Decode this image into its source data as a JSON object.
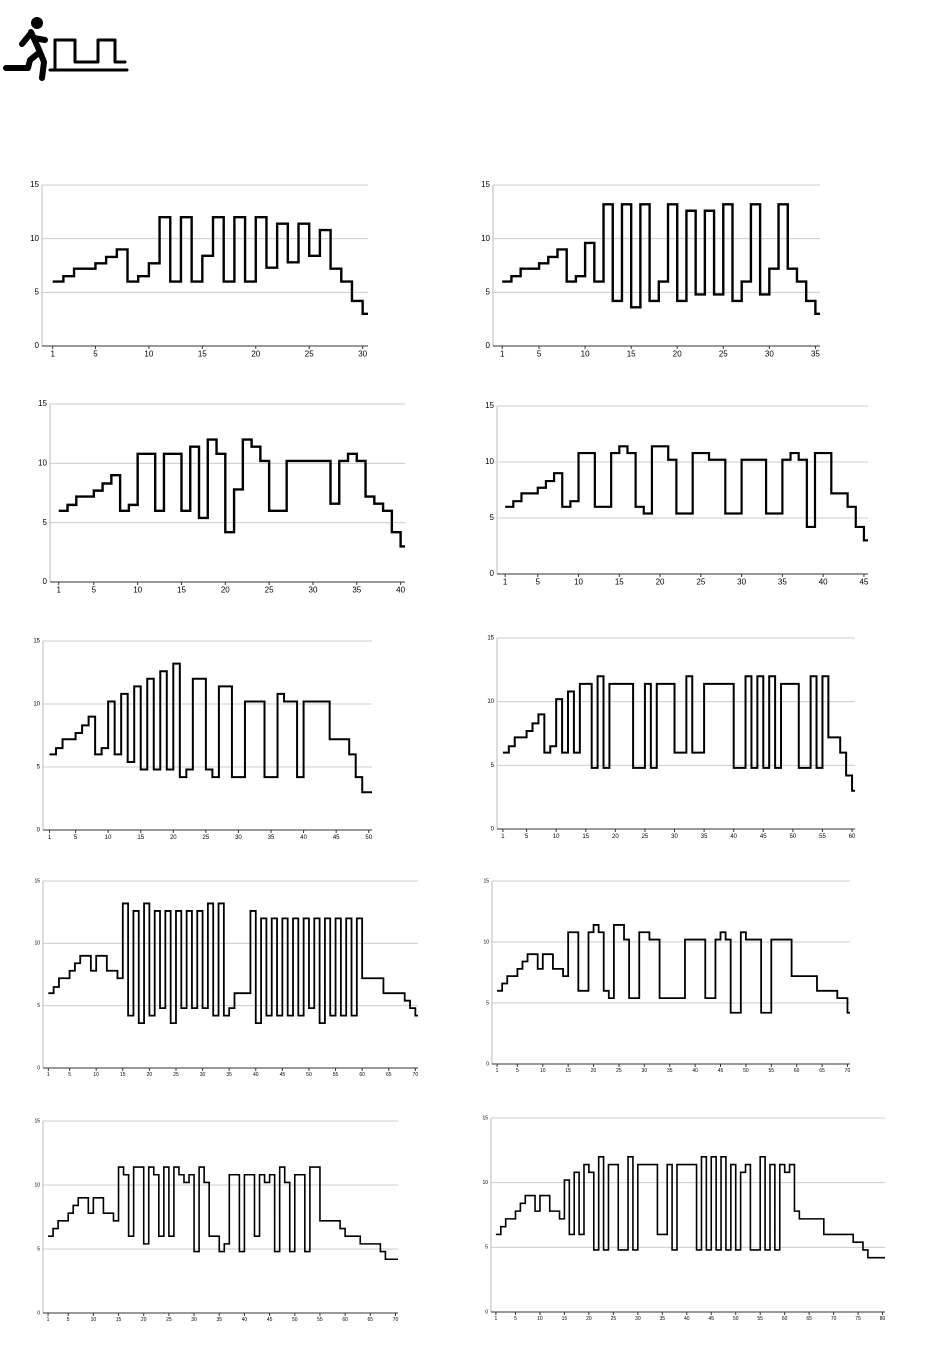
{
  "chart_data": [
    {
      "type": "step",
      "color": "#000000",
      "grid": true,
      "ylim": [
        0,
        15
      ],
      "yticks": [
        0,
        5,
        10,
        15
      ],
      "xlim": [
        0,
        30.5
      ],
      "xticks": [
        1,
        5,
        10,
        15,
        20,
        25,
        30
      ],
      "x": [
        1,
        2,
        3,
        4,
        5,
        6,
        7,
        8,
        9,
        10,
        11,
        12,
        13,
        14,
        15,
        16,
        17,
        18,
        19,
        20,
        21,
        22,
        23,
        24,
        25,
        26,
        27,
        28,
        29,
        30
      ],
      "values": [
        6,
        6.5,
        7.2,
        7.2,
        7.7,
        8.3,
        9,
        6,
        6.5,
        7.7,
        12,
        6,
        12,
        6,
        8.4,
        12,
        6,
        12,
        6,
        12,
        7.3,
        11.4,
        7.8,
        11.4,
        8.4,
        10.8,
        7.2,
        6,
        4.2,
        3
      ]
    },
    {
      "type": "step",
      "color": "#000000",
      "grid": true,
      "ylim": [
        0,
        15
      ],
      "yticks": [
        0,
        5,
        10,
        15
      ],
      "xlim": [
        0,
        35.5
      ],
      "xticks": [
        1,
        5,
        10,
        15,
        20,
        25,
        30,
        35
      ],
      "x": [
        1,
        2,
        3,
        4,
        5,
        6,
        7,
        8,
        9,
        10,
        11,
        12,
        13,
        14,
        15,
        16,
        17,
        18,
        19,
        20,
        21,
        22,
        23,
        24,
        25,
        26,
        27,
        28,
        29,
        30,
        31,
        32,
        33,
        34,
        35
      ],
      "values": [
        6,
        6.5,
        7.2,
        7.2,
        7.7,
        8.3,
        9,
        6,
        6.5,
        9.6,
        6,
        13.2,
        4.2,
        13.2,
        3.6,
        13.2,
        4.2,
        6,
        13.2,
        4.2,
        12.6,
        4.8,
        12.6,
        4.8,
        13.2,
        4.2,
        6,
        13.2,
        4.8,
        7.2,
        13.2,
        7.2,
        6,
        4.2,
        3
      ]
    },
    {
      "type": "step",
      "color": "#000000",
      "grid": true,
      "ylim": [
        0,
        15
      ],
      "yticks": [
        0,
        5,
        10,
        15
      ],
      "xlim": [
        0,
        40.5
      ],
      "xticks": [
        1,
        5,
        10,
        15,
        20,
        25,
        30,
        35,
        40
      ],
      "x": [
        1,
        2,
        3,
        4,
        5,
        6,
        7,
        8,
        9,
        10,
        11,
        12,
        13,
        14,
        15,
        16,
        17,
        18,
        19,
        20,
        21,
        22,
        23,
        24,
        25,
        26,
        27,
        28,
        29,
        30,
        31,
        32,
        33,
        34,
        35,
        36,
        37,
        38,
        39,
        40
      ],
      "values": [
        6,
        6.5,
        7.2,
        7.2,
        7.7,
        8.3,
        9,
        6,
        6.5,
        10.8,
        10.8,
        6,
        10.8,
        10.8,
        6,
        11.4,
        5.4,
        12,
        10.8,
        4.2,
        7.8,
        12,
        11.4,
        10.2,
        6,
        6,
        10.2,
        10.2,
        10.2,
        10.2,
        10.2,
        6.6,
        10.2,
        10.8,
        10.2,
        7.2,
        6.6,
        6,
        4.2,
        3
      ]
    },
    {
      "type": "step",
      "color": "#000000",
      "grid": true,
      "ylim": [
        0,
        15
      ],
      "yticks": [
        0,
        5,
        10,
        15
      ],
      "xlim": [
        0,
        45.5
      ],
      "xticks": [
        1,
        5,
        10,
        15,
        20,
        25,
        30,
        35,
        40,
        45
      ],
      "x": [
        1,
        2,
        3,
        4,
        5,
        6,
        7,
        8,
        9,
        10,
        11,
        12,
        13,
        14,
        15,
        16,
        17,
        18,
        19,
        20,
        21,
        22,
        23,
        24,
        25,
        26,
        27,
        28,
        29,
        30,
        31,
        32,
        33,
        34,
        35,
        36,
        37,
        38,
        39,
        40,
        41,
        42,
        43,
        44,
        45
      ],
      "values": [
        6,
        6.5,
        7.2,
        7.2,
        7.7,
        8.3,
        9,
        6,
        6.5,
        10.8,
        10.8,
        6,
        6,
        10.8,
        11.4,
        10.8,
        6,
        5.4,
        11.4,
        11.4,
        10.2,
        5.4,
        5.4,
        10.8,
        10.8,
        10.2,
        10.2,
        5.4,
        5.4,
        10.2,
        10.2,
        10.2,
        5.4,
        5.4,
        10.2,
        10.8,
        10.2,
        4.2,
        10.8,
        10.8,
        7.2,
        7.2,
        6,
        4.2,
        3
      ]
    },
    {
      "type": "step",
      "color": "#000000",
      "grid": true,
      "ylim": [
        0,
        15
      ],
      "yticks": [
        0,
        5,
        10,
        15
      ],
      "xlim": [
        0,
        50.5
      ],
      "xticks": [
        1,
        5,
        10,
        15,
        20,
        25,
        30,
        35,
        40,
        45,
        50
      ],
      "x": [
        1,
        2,
        3,
        4,
        5,
        6,
        7,
        8,
        9,
        10,
        11,
        12,
        13,
        14,
        15,
        16,
        17,
        18,
        19,
        20,
        21,
        22,
        23,
        24,
        25,
        26,
        27,
        28,
        29,
        30,
        31,
        32,
        33,
        34,
        35,
        36,
        37,
        38,
        39,
        40,
        41,
        42,
        43,
        44,
        45,
        46,
        47,
        48,
        49,
        50
      ],
      "values": [
        6,
        6.5,
        7.2,
        7.2,
        7.7,
        8.3,
        9,
        6,
        6.5,
        10.2,
        6,
        10.8,
        5.4,
        11.4,
        4.8,
        12,
        4.8,
        12.6,
        4.8,
        13.2,
        4.2,
        4.8,
        12,
        12,
        4.8,
        4.2,
        11.4,
        11.4,
        4.2,
        4.2,
        10.2,
        10.2,
        10.2,
        4.2,
        4.2,
        10.8,
        10.2,
        10.2,
        4.2,
        10.2,
        10.2,
        10.2,
        10.2,
        7.2,
        7.2,
        7.2,
        6,
        4.2,
        3,
        3
      ]
    },
    {
      "type": "step",
      "color": "#000000",
      "grid": true,
      "ylim": [
        0,
        15
      ],
      "yticks": [
        0,
        5,
        10,
        15
      ],
      "xlim": [
        0,
        60.5
      ],
      "xticks": [
        1,
        5,
        10,
        15,
        20,
        25,
        30,
        35,
        40,
        45,
        50,
        55,
        60
      ],
      "x": [
        1,
        2,
        3,
        4,
        5,
        6,
        7,
        8,
        9,
        10,
        11,
        12,
        13,
        14,
        15,
        16,
        17,
        18,
        19,
        20,
        21,
        22,
        23,
        24,
        25,
        26,
        27,
        28,
        29,
        30,
        31,
        32,
        33,
        34,
        35,
        36,
        37,
        38,
        39,
        40,
        41,
        42,
        43,
        44,
        45,
        46,
        47,
        48,
        49,
        50,
        51,
        52,
        53,
        54,
        55,
        56,
        57,
        58,
        59,
        60
      ],
      "values": [
        6,
        6.5,
        7.2,
        7.2,
        7.7,
        8.3,
        9,
        6,
        6.5,
        10.2,
        6,
        10.8,
        6,
        11.4,
        11.4,
        4.8,
        12,
        4.8,
        11.4,
        11.4,
        11.4,
        11.4,
        4.8,
        4.8,
        11.4,
        4.8,
        11.4,
        11.4,
        11.4,
        6,
        6,
        12,
        6,
        6,
        11.4,
        11.4,
        11.4,
        11.4,
        11.4,
        4.8,
        4.8,
        12,
        4.8,
        12,
        4.8,
        12,
        4.8,
        11.4,
        11.4,
        11.4,
        4.8,
        4.8,
        12,
        4.8,
        12,
        7.2,
        7.2,
        6,
        4.2,
        3
      ]
    },
    {
      "type": "step",
      "color": "#000000",
      "grid": true,
      "ylim": [
        0,
        15
      ],
      "yticks": [
        0,
        5,
        10,
        15
      ],
      "xlim": [
        0,
        70.5
      ],
      "xticks": [
        1,
        5,
        10,
        15,
        20,
        25,
        30,
        35,
        40,
        45,
        50,
        55,
        60,
        65,
        70
      ],
      "x": [
        1,
        2,
        3,
        4,
        5,
        6,
        7,
        8,
        9,
        10,
        11,
        12,
        13,
        14,
        15,
        16,
        17,
        18,
        19,
        20,
        21,
        22,
        23,
        24,
        25,
        26,
        27,
        28,
        29,
        30,
        31,
        32,
        33,
        34,
        35,
        36,
        37,
        38,
        39,
        40,
        41,
        42,
        43,
        44,
        45,
        46,
        47,
        48,
        49,
        50,
        51,
        52,
        53,
        54,
        55,
        56,
        57,
        58,
        59,
        60,
        61,
        62,
        63,
        64,
        65,
        66,
        67,
        68,
        69,
        70
      ],
      "values": [
        6,
        6.5,
        7.2,
        7.2,
        7.8,
        8.4,
        9,
        9,
        7.8,
        9,
        9,
        7.8,
        7.8,
        7.2,
        13.2,
        4.2,
        12.6,
        3.6,
        13.2,
        4.2,
        12.6,
        4.8,
        12.6,
        3.6,
        12.6,
        4.8,
        12.6,
        4.8,
        12.6,
        4.8,
        13.2,
        4.2,
        13.2,
        4.2,
        4.8,
        6,
        6,
        6,
        12.6,
        3.6,
        12,
        4.2,
        12,
        4.2,
        12,
        4.2,
        12,
        4.2,
        12,
        4.8,
        12,
        3.6,
        12,
        4.2,
        12,
        4.2,
        12,
        4.2,
        12,
        7.2,
        7.2,
        7.2,
        7.2,
        6,
        6,
        6,
        6,
        5.4,
        4.8,
        4.2
      ]
    },
    {
      "type": "step",
      "color": "#000000",
      "grid": true,
      "ylim": [
        0,
        15
      ],
      "yticks": [
        0,
        5,
        10,
        15
      ],
      "xlim": [
        0,
        70.5
      ],
      "xticks": [
        1,
        5,
        10,
        15,
        20,
        25,
        30,
        35,
        40,
        45,
        50,
        55,
        60,
        65,
        70
      ],
      "x": [
        1,
        2,
        3,
        4,
        5,
        6,
        7,
        8,
        9,
        10,
        11,
        12,
        13,
        14,
        15,
        16,
        17,
        18,
        19,
        20,
        21,
        22,
        23,
        24,
        25,
        26,
        27,
        28,
        29,
        30,
        31,
        32,
        33,
        34,
        35,
        36,
        37,
        38,
        39,
        40,
        41,
        42,
        43,
        44,
        45,
        46,
        47,
        48,
        49,
        50,
        51,
        52,
        53,
        54,
        55,
        56,
        57,
        58,
        59,
        60,
        61,
        62,
        63,
        64,
        65,
        66,
        67,
        68,
        69,
        70
      ],
      "values": [
        6,
        6.6,
        7.2,
        7.2,
        7.8,
        8.4,
        9,
        9,
        7.8,
        9,
        9,
        7.8,
        7.8,
        7.2,
        10.8,
        10.8,
        6,
        6,
        10.8,
        11.4,
        10.8,
        6,
        5.4,
        11.4,
        11.4,
        10.2,
        5.4,
        5.4,
        10.8,
        10.8,
        10.2,
        10.2,
        5.4,
        5.4,
        5.4,
        5.4,
        5.4,
        10.2,
        10.2,
        10.2,
        10.2,
        5.4,
        5.4,
        10.2,
        10.8,
        10.2,
        4.2,
        4.2,
        10.8,
        10.2,
        10.2,
        10.2,
        4.2,
        4.2,
        10.2,
        10.2,
        10.2,
        10.2,
        7.2,
        7.2,
        7.2,
        7.2,
        7.2,
        6,
        6,
        6,
        6,
        5.4,
        5.4,
        4.2
      ]
    },
    {
      "type": "step",
      "color": "#000000",
      "grid": true,
      "ylim": [
        0,
        15
      ],
      "yticks": [
        0,
        5,
        10,
        15
      ],
      "xlim": [
        0,
        70.5
      ],
      "xticks": [
        1,
        5,
        10,
        15,
        20,
        25,
        30,
        35,
        40,
        45,
        50,
        55,
        60,
        65,
        70
      ],
      "x": [
        1,
        2,
        3,
        4,
        5,
        6,
        7,
        8,
        9,
        10,
        11,
        12,
        13,
        14,
        15,
        16,
        17,
        18,
        19,
        20,
        21,
        22,
        23,
        24,
        25,
        26,
        27,
        28,
        29,
        30,
        31,
        32,
        33,
        34,
        35,
        36,
        37,
        38,
        39,
        40,
        41,
        42,
        43,
        44,
        45,
        46,
        47,
        48,
        49,
        50,
        51,
        52,
        53,
        54,
        55,
        56,
        57,
        58,
        59,
        60,
        61,
        62,
        63,
        64,
        65,
        66,
        67,
        68,
        69,
        70
      ],
      "values": [
        6,
        6.6,
        7.2,
        7.2,
        7.8,
        8.4,
        9,
        9,
        7.8,
        9,
        9,
        7.8,
        7.8,
        7.2,
        11.4,
        10.8,
        6,
        11.4,
        11.4,
        5.4,
        11.4,
        10.8,
        6,
        11.4,
        6,
        11.4,
        10.8,
        10.2,
        10.8,
        4.8,
        11.4,
        10.2,
        6,
        6,
        4.8,
        5.4,
        10.8,
        10.8,
        4.8,
        10.8,
        10.8,
        6,
        10.8,
        10.2,
        10.8,
        4.8,
        11.4,
        10.2,
        4.8,
        10.8,
        10.8,
        4.8,
        11.4,
        11.4,
        7.2,
        7.2,
        7.2,
        7.2,
        6.6,
        6,
        6,
        6,
        5.4,
        5.4,
        5.4,
        5.4,
        4.8,
        4.2,
        4.2,
        4.2
      ]
    },
    {
      "type": "step",
      "color": "#000000",
      "grid": true,
      "ylim": [
        0,
        15
      ],
      "yticks": [
        0,
        5,
        10,
        15
      ],
      "xlim": [
        0,
        80.5
      ],
      "xticks": [
        1,
        5,
        10,
        15,
        20,
        25,
        30,
        35,
        40,
        45,
        50,
        55,
        60,
        65,
        70,
        75,
        80
      ],
      "x": [
        1,
        2,
        3,
        4,
        5,
        6,
        7,
        8,
        9,
        10,
        11,
        12,
        13,
        14,
        15,
        16,
        17,
        18,
        19,
        20,
        21,
        22,
        23,
        24,
        25,
        26,
        27,
        28,
        29,
        30,
        31,
        32,
        33,
        34,
        35,
        36,
        37,
        38,
        39,
        40,
        41,
        42,
        43,
        44,
        45,
        46,
        47,
        48,
        49,
        50,
        51,
        52,
        53,
        54,
        55,
        56,
        57,
        58,
        59,
        60,
        61,
        62,
        63,
        64,
        65,
        66,
        67,
        68,
        69,
        70,
        71,
        72,
        73,
        74,
        75,
        76,
        77,
        78,
        79,
        80
      ],
      "values": [
        6,
        6.6,
        7.2,
        7.2,
        7.8,
        8.4,
        9,
        9,
        7.8,
        9,
        9,
        7.8,
        7.8,
        7.2,
        10.2,
        6,
        10.8,
        6,
        11.4,
        10.8,
        4.8,
        12,
        4.8,
        11.4,
        11.4,
        4.8,
        4.8,
        12,
        4.8,
        11.4,
        11.4,
        11.4,
        11.4,
        6,
        6,
        11.4,
        4.8,
        11.4,
        11.4,
        11.4,
        11.4,
        4.8,
        12,
        4.8,
        12,
        4.8,
        12,
        4.8,
        11.4,
        4.8,
        10.8,
        11.4,
        4.8,
        4.8,
        12,
        4.8,
        11.4,
        4.8,
        11.4,
        10.8,
        11.4,
        7.8,
        7.2,
        7.2,
        7.2,
        7.2,
        7.2,
        6,
        6,
        6,
        6,
        6,
        6,
        5.4,
        5.4,
        4.8,
        4.2,
        4.2,
        4.2,
        4.2
      ]
    }
  ]
}
